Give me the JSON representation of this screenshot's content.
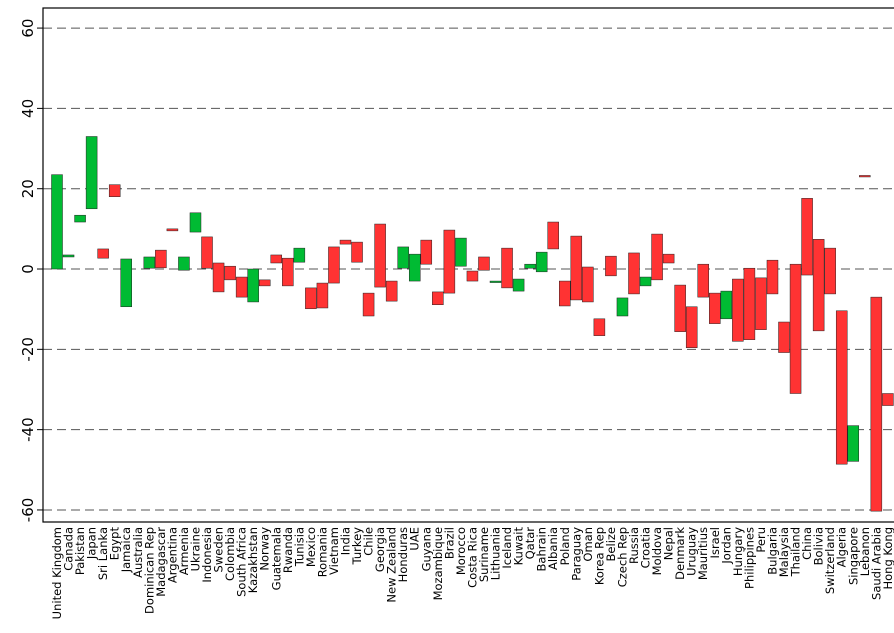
{
  "chart_data": {
    "type": "floating_bar",
    "categories": [
      "United Kingdom",
      "Canada",
      "Pakistan",
      "Japan",
      "Sri Lanka",
      "Egypt",
      "Jamaica",
      "Australia",
      "Dominican Rep",
      "Madagascar",
      "Argentina",
      "Armenia",
      "Ukraine",
      "Indonesia",
      "Sweden",
      "Colombia",
      "South Africa",
      "Kazakhstan",
      "Norway",
      "Guatemala",
      "Rwanda",
      "Tunisia",
      "Mexico",
      "Romania",
      "Vietnam",
      "India",
      "Turkey",
      "Chile",
      "Georgia",
      "New Zealand",
      "Honduras",
      "UAE",
      "Guyana",
      "Mozambique",
      "Brazil",
      "Morocco",
      "Costa Rica",
      "Suriname",
      "Lithuania",
      "Iceland",
      "Kuwait",
      "Qatar",
      "Bahrain",
      "Albania",
      "Poland",
      "Paraguay",
      "Oman",
      "Korea Rep",
      "Belize",
      "Czech Rep",
      "Russia",
      "Croatia",
      "Moldova",
      "Nepal",
      "Denmark",
      "Uruguay",
      "Mauritius",
      "Israel",
      "Jordan",
      "Hungary",
      "Philippines",
      "Peru",
      "Bulgaria",
      "Malaysia",
      "Thailand",
      "China",
      "Bolivia",
      "Switzerland",
      "Algeria",
      "Singapore",
      "Lebanon",
      "Saudi Arabia",
      "Hong Kong"
    ],
    "high": [
      23.5,
      3.5,
      13.4,
      33,
      5,
      21,
      2.5,
      null,
      3,
      4.7,
      10,
      3,
      14,
      8,
      1.5,
      0.7,
      -2,
      0,
      -2.7,
      3.5,
      2.7,
      5.2,
      -4.7,
      -3.5,
      5.5,
      7.2,
      6.7,
      -6,
      11.2,
      -3,
      5.5,
      3.7,
      7.2,
      -5.7,
      9.7,
      7.7,
      -0.5,
      3,
      -3,
      5.2,
      -2.5,
      1.2,
      4.2,
      11.7,
      -3,
      8.2,
      0.5,
      -12.4,
      3.2,
      -7.2,
      4,
      -2,
      8.7,
      3.7,
      -4,
      -9.4,
      1.2,
      -6,
      -5.5,
      -2.5,
      0.2,
      -2.2,
      2.2,
      -13.2,
      1.2,
      17.6,
      7.4,
      5.2,
      -10.4,
      -39,
      23.3,
      -7,
      -31
    ],
    "low": [
      0,
      3,
      11.7,
      15,
      2.7,
      18,
      -9.4,
      null,
      0.2,
      0.3,
      9.5,
      -0.3,
      9.2,
      0.2,
      -5.7,
      -2.7,
      -7,
      -8.2,
      -4.2,
      1.5,
      -4.2,
      1.7,
      -9.9,
      -9.7,
      -3.5,
      6.2,
      1.7,
      -11.7,
      -4.5,
      -8,
      0.2,
      -3,
      1.2,
      -8.9,
      -6,
      0.7,
      -3,
      -0.3,
      -3.3,
      -4.7,
      -5.5,
      0.2,
      -0.7,
      5,
      -9.2,
      -7.7,
      -8.2,
      -16.6,
      -1.7,
      -11.7,
      -6.2,
      -4.2,
      -2.7,
      1.5,
      -15.6,
      -19.6,
      -7,
      -13.6,
      -12.4,
      -18,
      -17.6,
      -15.1,
      -6.2,
      -20.8,
      -31,
      -1.5,
      -15.4,
      -6.2,
      -48.6,
      -47.9,
      23,
      -60.3,
      -34
    ],
    "colors": [
      "#00bb33",
      "#00bb33",
      "#00bb33",
      "#00bb33",
      "#ff3333",
      "#ff3333",
      "#00bb33",
      null,
      "#00bb33",
      "#ff3333",
      "#ff3333",
      "#00bb33",
      "#00bb33",
      "#ff3333",
      "#ff3333",
      "#ff3333",
      "#ff3333",
      "#00bb33",
      "#ff3333",
      "#ff3333",
      "#ff3333",
      "#00bb33",
      "#ff3333",
      "#ff3333",
      "#ff3333",
      "#ff3333",
      "#ff3333",
      "#ff3333",
      "#ff3333",
      "#ff3333",
      "#00bb33",
      "#00bb33",
      "#ff3333",
      "#ff3333",
      "#ff3333",
      "#00bb33",
      "#ff3333",
      "#ff3333",
      "#00bb33",
      "#ff3333",
      "#00bb33",
      "#00bb33",
      "#00bb33",
      "#ff3333",
      "#ff3333",
      "#ff3333",
      "#ff3333",
      "#ff3333",
      "#ff3333",
      "#00bb33",
      "#ff3333",
      "#00bb33",
      "#ff3333",
      "#ff3333",
      "#ff3333",
      "#ff3333",
      "#ff3333",
      "#ff3333",
      "#00bb33",
      "#ff3333",
      "#ff3333",
      "#ff3333",
      "#ff3333",
      "#ff3333",
      "#ff3333",
      "#ff3333",
      "#ff3333",
      "#ff3333",
      "#ff3333",
      "#00bb33",
      "#ff3333",
      "#ff3333",
      "#ff3333"
    ],
    "ylim": [
      -63,
      65
    ],
    "yticks": [
      -60,
      -40,
      -20,
      0,
      20,
      40,
      60
    ],
    "grid": true
  }
}
